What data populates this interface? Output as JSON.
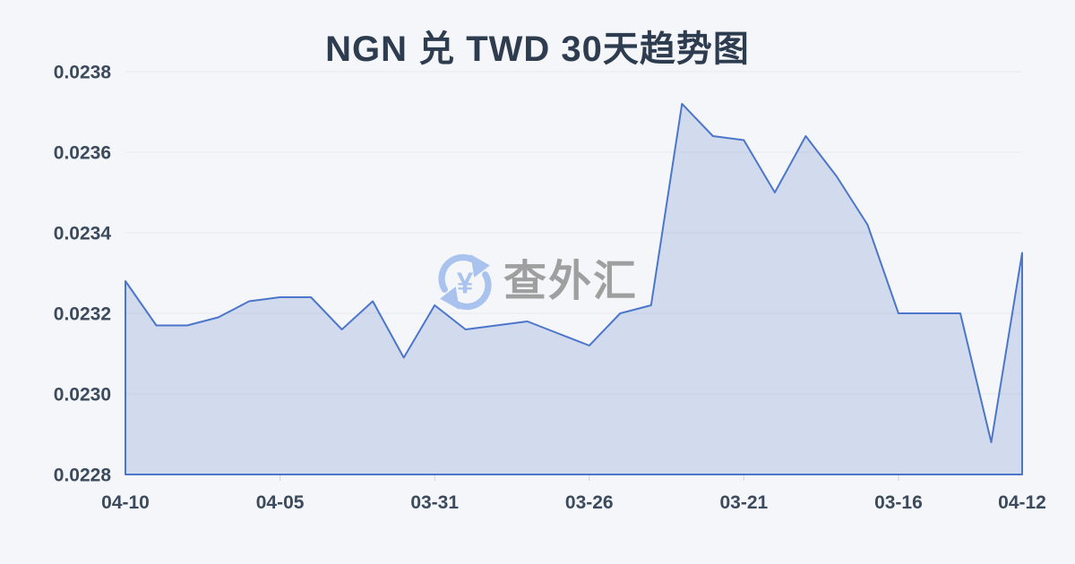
{
  "page": {
    "background_color": "#f4f6f9",
    "title": "NGN 兑 TWD 30天趋势图",
    "title_color": "#2e3c50"
  },
  "watermark": {
    "text": "查外汇",
    "icon": "currency-exchange-circular-arrows-icon",
    "icon_symbol": "¥",
    "icon_color": "#a9c3ee",
    "text_color": "#9f9f9f"
  },
  "chart_data": {
    "type": "area",
    "title": "NGN 兑 TWD 30天趋势图",
    "xlabel": "",
    "ylabel": "",
    "grid": true,
    "legend": "none",
    "ylim": [
      0.0228,
      0.0238
    ],
    "y_tick_labels": [
      "0.0238",
      "0.0236",
      "0.0234",
      "0.0232",
      "0.0230",
      "0.0228"
    ],
    "x": [
      "04-10",
      "04-09",
      "04-08",
      "04-07",
      "04-06",
      "04-05",
      "04-04",
      "04-03",
      "04-02",
      "04-01",
      "03-31",
      "03-30",
      "03-29",
      "03-28",
      "03-27",
      "03-26",
      "03-25",
      "03-24",
      "03-23",
      "03-22",
      "03-21",
      "03-20",
      "03-19",
      "03-18",
      "03-17",
      "03-16",
      "03-15",
      "03-14",
      "03-13",
      "04-12"
    ],
    "series": [
      {
        "values": [
          0.02328,
          0.02317,
          0.02317,
          0.02319,
          0.02323,
          0.02324,
          0.02324,
          0.02316,
          0.02323,
          0.02309,
          0.02322,
          0.02316,
          0.02317,
          0.02318,
          0.02315,
          0.02312,
          0.0232,
          0.02322,
          0.02372,
          0.02364,
          0.02363,
          0.0235,
          0.02364,
          0.02354,
          0.02342,
          0.0232,
          0.0232,
          0.0232,
          0.02288,
          0.02335
        ]
      }
    ],
    "visible_x_tick_labels": [
      "04-10",
      "04-05",
      "03-31",
      "03-26",
      "03-21",
      "03-16",
      "04-12"
    ],
    "x_tick_indices": [
      0,
      5,
      10,
      15,
      20,
      25,
      29
    ],
    "line_color": "#4c76cb",
    "fill_color": "rgba(105,140,205,0.25)",
    "gridline_color": "#e8eaee",
    "tick_mark_color": "#cfd4da",
    "axis_label_color": "#3b4a5d"
  }
}
